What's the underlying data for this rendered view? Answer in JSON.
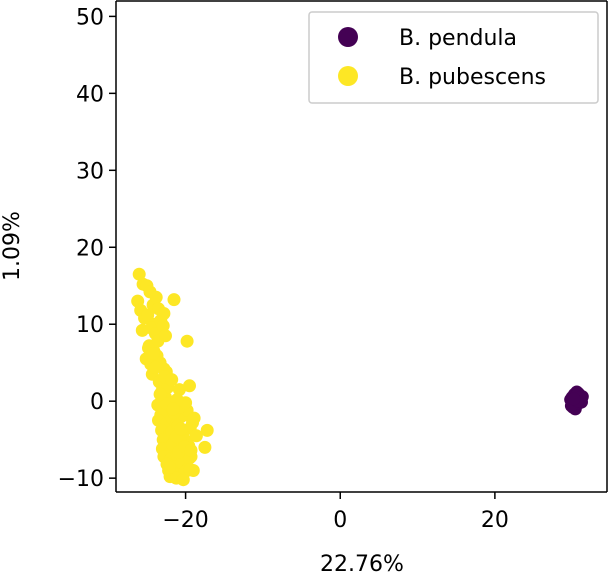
{
  "chart_data": {
    "type": "scatter",
    "title": "",
    "xlabel": "22.76%",
    "ylabel": "1.09%",
    "xlim": [
      -29.0,
      34.5
    ],
    "ylim": [
      -11.8,
      52.0
    ],
    "xticks": [
      -20,
      0,
      20
    ],
    "xtick_labels": [
      "−20",
      "0",
      "20"
    ],
    "yticks": [
      -10,
      0,
      10,
      20,
      30,
      40,
      50
    ],
    "ytick_labels": [
      "−10",
      "0",
      "10",
      "20",
      "30",
      "40",
      "50"
    ],
    "grid": false,
    "legend": "top-right",
    "series": [
      {
        "name": "B. pendula",
        "color": "#440154",
        "x": [
          30.0,
          30.4,
          30.8,
          31.1,
          30.2,
          30.6,
          31.0,
          29.8,
          30.3,
          30.7,
          31.3,
          30.1,
          30.5,
          30.9,
          30.4,
          30.0,
          30.6,
          30.8,
          31.2,
          30.3,
          30.5,
          30.9,
          29.9,
          30.7,
          30.2
        ],
        "y": [
          0.0,
          0.4,
          0.8,
          0.3,
          -0.4,
          1.2,
          -0.2,
          0.2,
          0.9,
          0.5,
          0.6,
          -0.8,
          -0.5,
          0.1,
          -1.0,
          0.5,
          -0.3,
          1.0,
          -0.1,
          0.1,
          0.7,
          0.4,
          -0.6,
          0.0,
          0.3
        ]
      },
      {
        "name": "B. pubescens",
        "color": "#fde725",
        "x": [
          -26.0,
          -25.5,
          -26.2,
          -25.0,
          -24.6,
          -25.8,
          -24.2,
          -23.8,
          -25.3,
          -24.9,
          -24.0,
          -23.5,
          -25.6,
          -24.4,
          -23.9,
          -23.2,
          -22.9,
          -24.7,
          -24.1,
          -23.6,
          -22.6,
          -25.1,
          -24.5,
          -23.7,
          -23.3,
          -22.8,
          -24.3,
          -23.4,
          -22.5,
          -23.0,
          -23.1,
          -22.6,
          -22.3,
          -23.6,
          -22.2,
          -23.2,
          -21.5,
          -19.8,
          -24.8,
          -22.8,
          -23.9,
          -22.7,
          -21.8,
          -20.8,
          -19.5,
          -23.5,
          -22.6,
          -21.7,
          -20.6,
          -19.4,
          -23.1,
          -22.0,
          -21.2,
          -20.3,
          -19.1,
          -22.9,
          -21.6,
          -20.7,
          -19.9,
          -18.6,
          -17.5,
          -23.0,
          -22.1,
          -21.3,
          -20.4,
          -19.6,
          -22.8,
          -21.9,
          -21.1,
          -20.2,
          -19.3,
          -22.4,
          -21.4,
          -20.5,
          -19.7,
          -22.2,
          -21.3,
          -20.1,
          -19.0,
          -22.0,
          -21.2,
          -20.3,
          -21.8,
          -21.0,
          -20.2,
          -19.8,
          -21.5,
          -20.8,
          -20.0,
          -22.5,
          -21.1,
          -20.4,
          -19.5,
          -21.7,
          -20.9,
          -20.1,
          -21.2,
          -20.6,
          -18.9,
          -17.2,
          -22.1,
          -19.4,
          -23.3,
          -21.6,
          -24.2,
          -19.3
        ],
        "y": [
          16.5,
          15.2,
          13.0,
          15.0,
          14.2,
          11.8,
          12.5,
          13.5,
          10.8,
          11.2,
          10.0,
          12.0,
          9.2,
          9.5,
          8.8,
          10.5,
          9.8,
          7.2,
          6.5,
          7.8,
          8.5,
          5.5,
          4.8,
          5.9,
          5.0,
          4.2,
          3.5,
          2.5,
          3.8,
          2.0,
          1.2,
          0.5,
          1.8,
          -0.5,
          -1.2,
          -1.8,
          13.2,
          7.8,
          6.9,
          11.4,
          4.4,
          3.2,
          2.8,
          1.5,
          2.0,
          -2.5,
          -3.0,
          -2.2,
          -2.0,
          -3.5,
          -3.8,
          -4.2,
          -3.0,
          -4.5,
          -2.8,
          -5.0,
          -5.5,
          -4.8,
          -5.2,
          -4.5,
          -6.0,
          -6.2,
          -6.8,
          -6.0,
          -6.5,
          -5.8,
          -7.2,
          -7.5,
          -7.0,
          -7.8,
          -7.2,
          -8.2,
          -8.5,
          -8.0,
          -8.8,
          -9.0,
          -9.5,
          -9.2,
          -9.0,
          -9.8,
          -10.0,
          -10.2,
          -4.0,
          -3.2,
          -1.8,
          -1.2,
          -1.5,
          -0.8,
          -0.2,
          -0.3,
          0.2,
          -6.3,
          -7.4,
          -5.6,
          -6.6,
          -5.9,
          -4.6,
          -3.6,
          -2.2,
          -3.8,
          -8.6,
          -8.9,
          0.9,
          -1.0,
          6.2,
          -6.4
        ]
      }
    ]
  }
}
